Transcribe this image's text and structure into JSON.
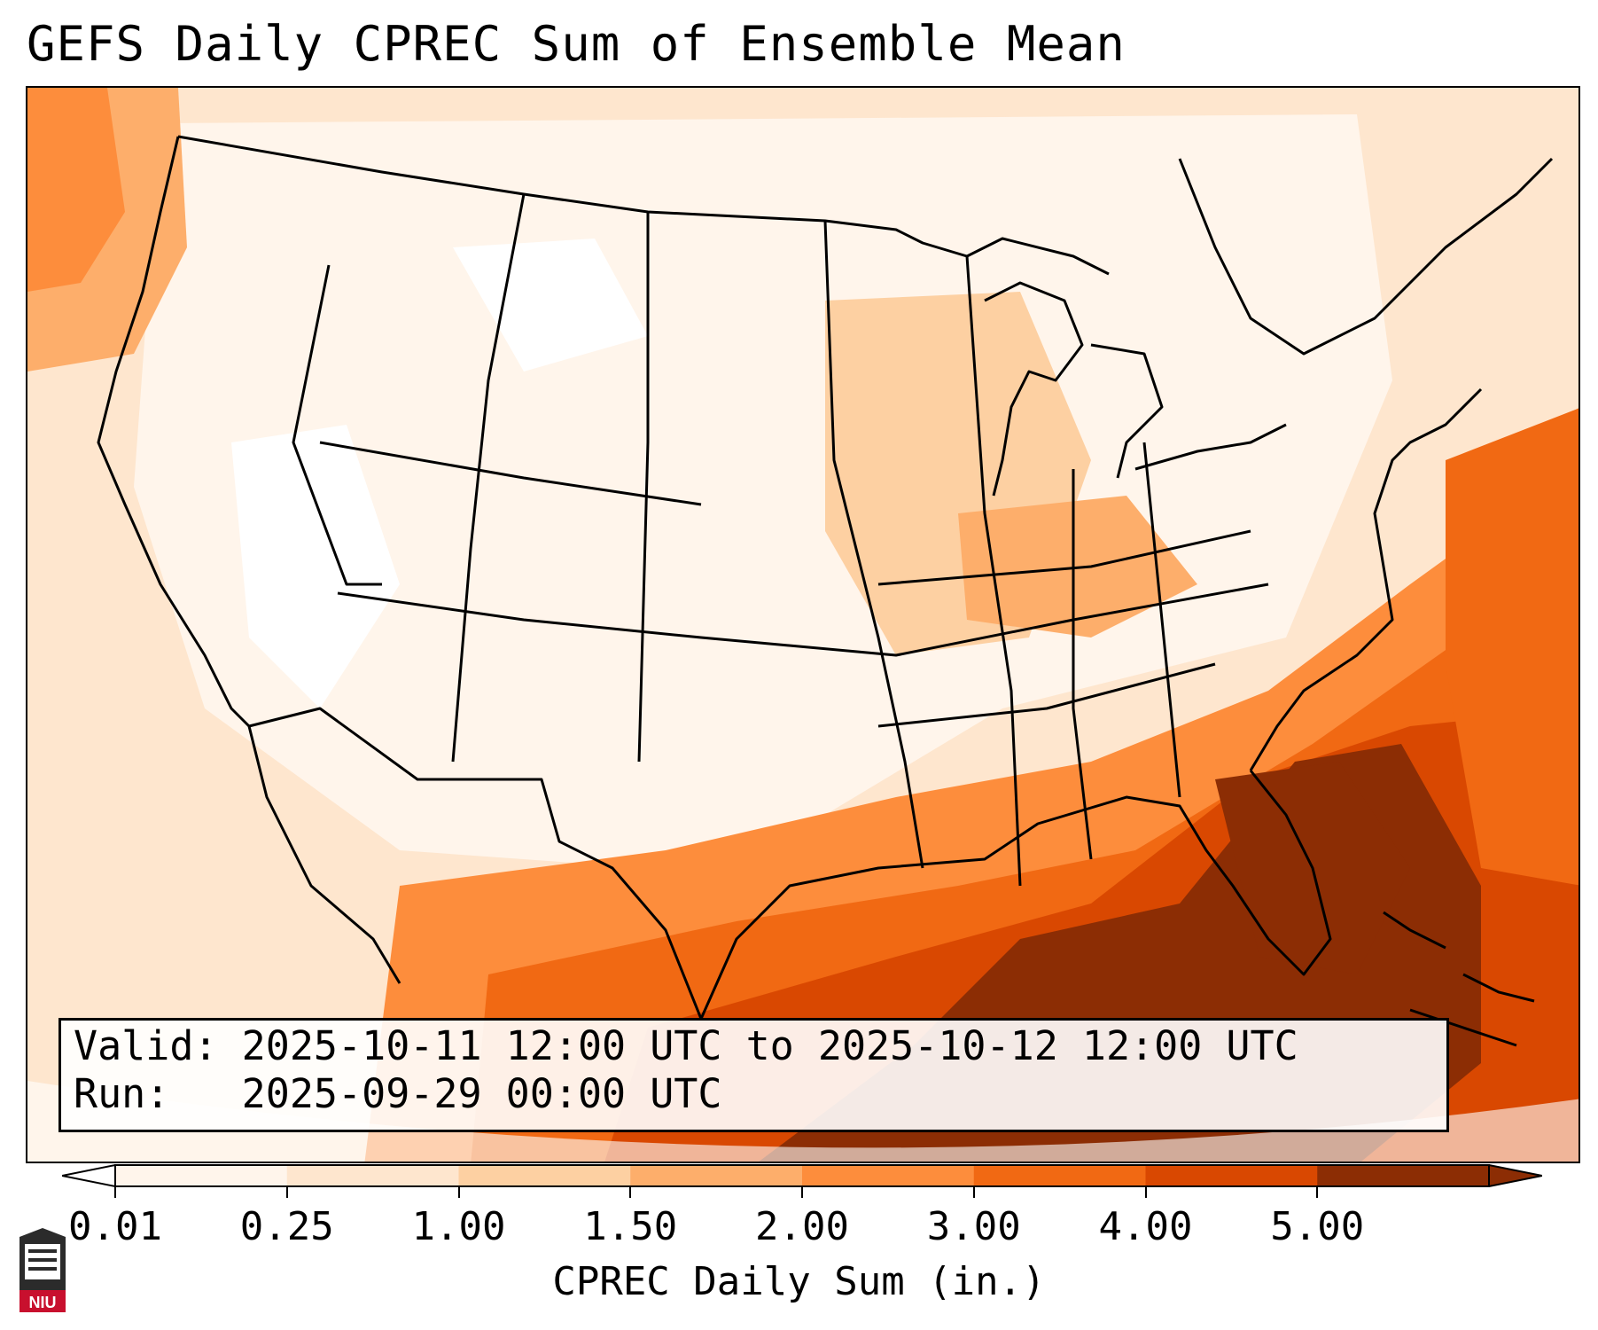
{
  "title": "GEFS Daily CPREC Sum of Ensemble Mean",
  "info": {
    "valid_line": "Valid: 2025-10-11 12:00 UTC to 2025-10-12 12:00 UTC",
    "run_line": "Run:   2025-09-29 00:00 UTC"
  },
  "colorbar": {
    "label": "CPREC Daily Sum (in.)",
    "ticks": [
      "0.01",
      "0.25",
      "1.00",
      "1.50",
      "2.00",
      "3.00",
      "4.00",
      "5.00"
    ],
    "colors": [
      "#fff5eb",
      "#fee6ce",
      "#fdd0a2",
      "#fdae6b",
      "#fd8d3c",
      "#f16913",
      "#d94801",
      "#8c2d04"
    ]
  },
  "logo": {
    "text": "NIU",
    "icon": "niu-logo-icon"
  }
}
